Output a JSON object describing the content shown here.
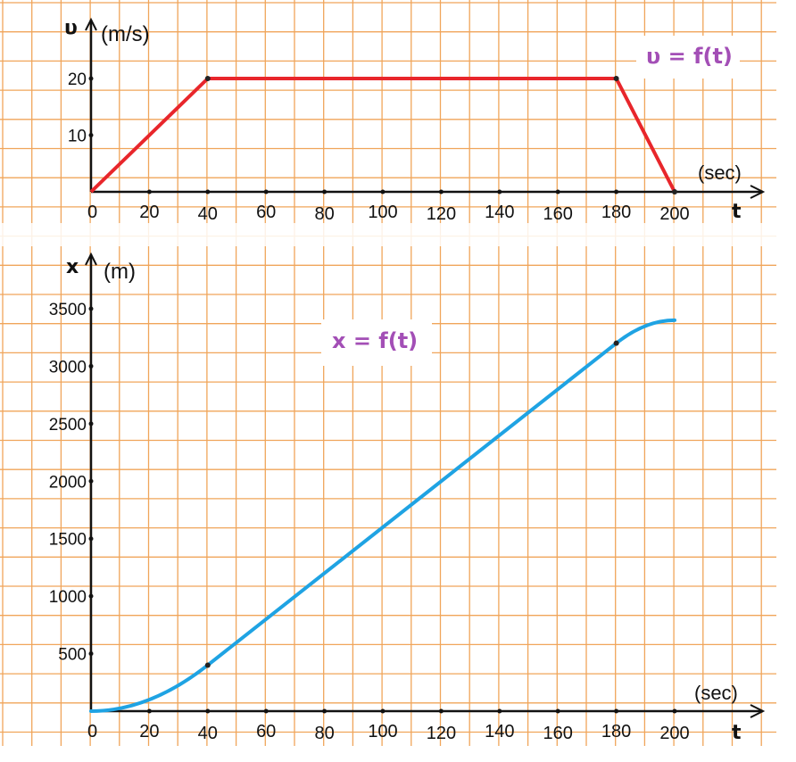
{
  "colors": {
    "grid": "#f0a55a",
    "velocity_line": "#e8262b",
    "position_line": "#1fa3e3",
    "title": "#a34fb6",
    "axis": "#111111"
  },
  "chart_data": [
    {
      "type": "line",
      "title": "υ = f(t)",
      "ylabel_symbol": "υ",
      "ylabel_unit": "(m/s)",
      "xlabel_symbol": "t",
      "xlabel_unit": "(sec)",
      "xlim": [
        0,
        200
      ],
      "ylim": [
        0,
        20
      ],
      "x_ticks": [
        "0",
        "20",
        "40",
        "60",
        "80",
        "100",
        "120",
        "140",
        "160",
        "180",
        "200"
      ],
      "y_ticks": [
        "10",
        "20"
      ],
      "grid": true,
      "series": [
        {
          "x": [
            0,
            40,
            180,
            200
          ],
          "y": [
            0,
            20,
            20,
            0
          ]
        }
      ]
    },
    {
      "type": "line",
      "title": "x = f(t)",
      "ylabel_symbol": "x",
      "ylabel_unit": "(m)",
      "xlabel_symbol": "t",
      "xlabel_unit": "(sec)",
      "xlim": [
        0,
        200
      ],
      "ylim": [
        0,
        3500
      ],
      "x_ticks": [
        "0",
        "20",
        "40",
        "60",
        "80",
        "100",
        "120",
        "140",
        "160",
        "180",
        "200"
      ],
      "y_ticks": [
        "500",
        "1000",
        "1500",
        "2000",
        "2500",
        "3000",
        "3500"
      ],
      "grid": true,
      "series": [
        {
          "x": [
            0,
            40,
            180,
            200
          ],
          "y": [
            0,
            400,
            3200,
            3400
          ]
        }
      ]
    }
  ]
}
